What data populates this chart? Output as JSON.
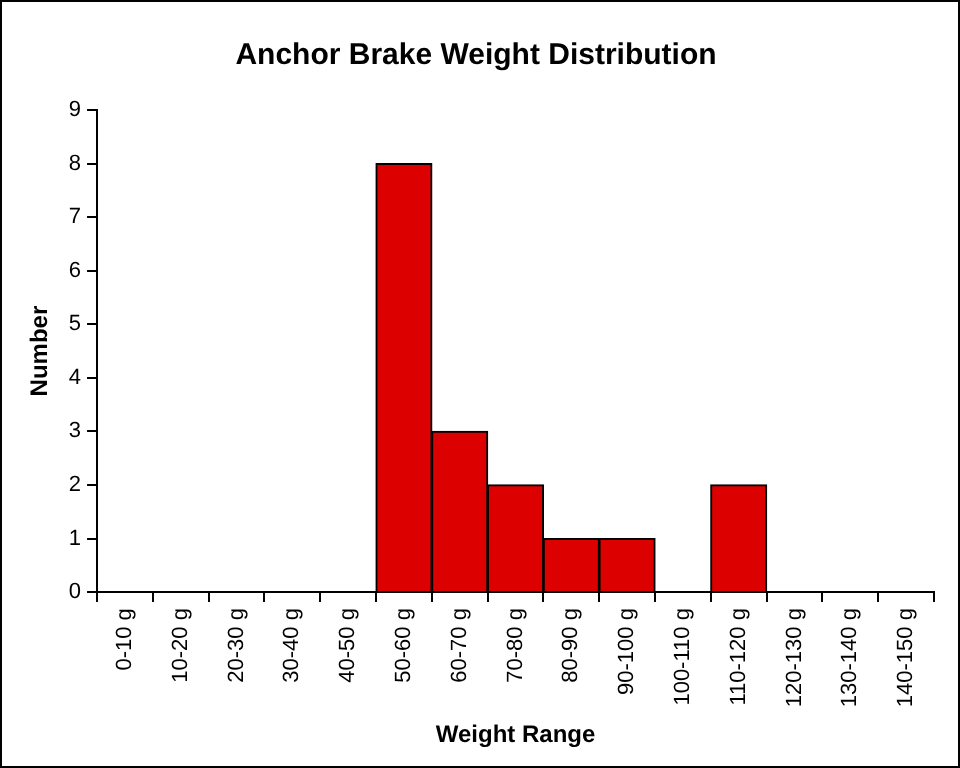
{
  "chart_data": {
    "type": "bar",
    "title": "Anchor Brake Weight Distribution",
    "xlabel": "Weight Range",
    "ylabel": "Number",
    "categories": [
      "0-10 g",
      "10-20 g",
      "20-30 g",
      "30-40 g",
      "40-50 g",
      "50-60 g",
      "60-70 g",
      "70-80 g",
      "80-90 g",
      "90-100 g",
      "100-110 g",
      "110-120 g",
      "120-130 g",
      "130-140 g",
      "140-150 g"
    ],
    "values": [
      0,
      0,
      0,
      0,
      0,
      8,
      3,
      2,
      1,
      1,
      0,
      2,
      0,
      0,
      0
    ],
    "color": "#dd0000",
    "ylim": [
      0,
      9
    ],
    "yticks": [
      0,
      1,
      2,
      3,
      4,
      5,
      6,
      7,
      8,
      9
    ],
    "grid": false,
    "legend": false
  }
}
